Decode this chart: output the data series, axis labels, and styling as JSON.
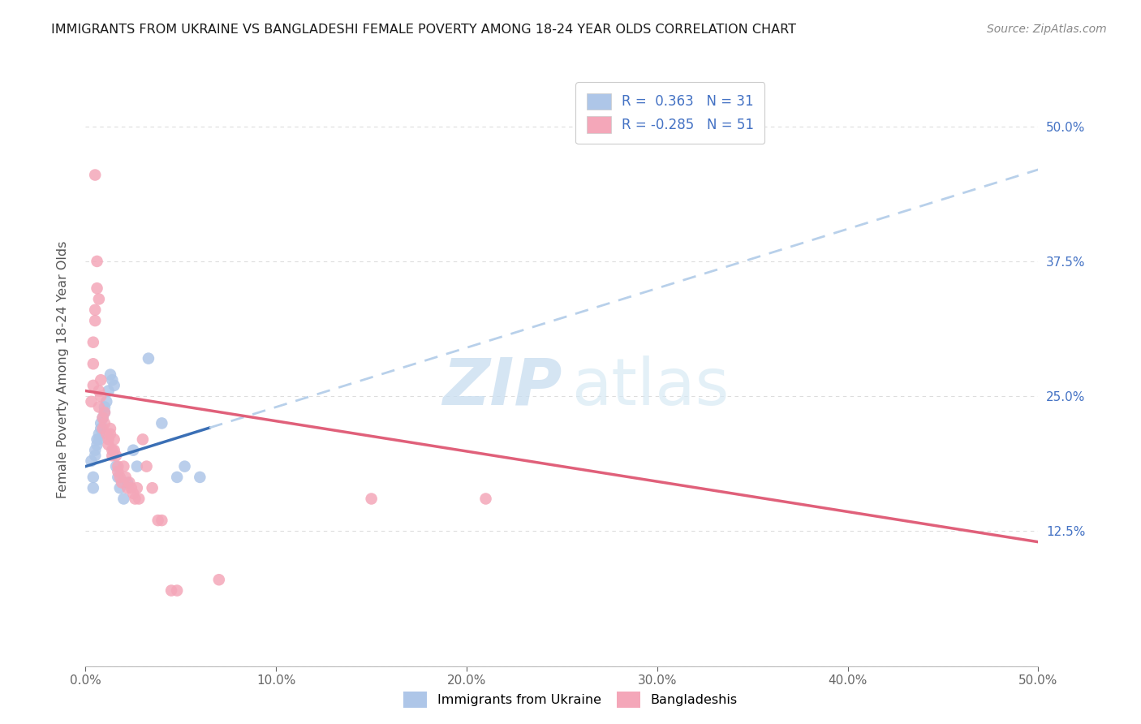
{
  "title": "IMMIGRANTS FROM UKRAINE VS BANGLADESHI FEMALE POVERTY AMONG 18-24 YEAR OLDS CORRELATION CHART",
  "source": "Source: ZipAtlas.com",
  "ylabel": "Female Poverty Among 18-24 Year Olds",
  "right_yticks": [
    "50.0%",
    "37.5%",
    "25.0%",
    "12.5%"
  ],
  "right_ytick_vals": [
    0.5,
    0.375,
    0.25,
    0.125
  ],
  "xlim": [
    0.0,
    0.5
  ],
  "ylim": [
    0.0,
    0.55
  ],
  "r_ukraine": 0.363,
  "n_ukraine": 31,
  "r_bangladeshi": -0.285,
  "n_bangladeshi": 51,
  "ukraine_color": "#aec6e8",
  "bangladeshi_color": "#f4a7b9",
  "ukraine_line_color": "#3a6fb5",
  "bangladeshi_line_color": "#e0607a",
  "ukraine_dashed_color": "#b8d0ea",
  "background_color": "#ffffff",
  "grid_color": "#dddddd",
  "ukraine_points": [
    [
      0.003,
      0.19
    ],
    [
      0.004,
      0.175
    ],
    [
      0.004,
      0.165
    ],
    [
      0.005,
      0.2
    ],
    [
      0.005,
      0.195
    ],
    [
      0.006,
      0.205
    ],
    [
      0.006,
      0.21
    ],
    [
      0.007,
      0.215
    ],
    [
      0.007,
      0.21
    ],
    [
      0.008,
      0.22
    ],
    [
      0.008,
      0.225
    ],
    [
      0.009,
      0.23
    ],
    [
      0.01,
      0.24
    ],
    [
      0.01,
      0.235
    ],
    [
      0.011,
      0.245
    ],
    [
      0.012,
      0.255
    ],
    [
      0.013,
      0.27
    ],
    [
      0.014,
      0.265
    ],
    [
      0.015,
      0.26
    ],
    [
      0.016,
      0.185
    ],
    [
      0.017,
      0.175
    ],
    [
      0.018,
      0.165
    ],
    [
      0.02,
      0.155
    ],
    [
      0.022,
      0.17
    ],
    [
      0.025,
      0.2
    ],
    [
      0.027,
      0.185
    ],
    [
      0.033,
      0.285
    ],
    [
      0.04,
      0.225
    ],
    [
      0.048,
      0.175
    ],
    [
      0.052,
      0.185
    ],
    [
      0.06,
      0.175
    ]
  ],
  "bangladeshi_points": [
    [
      0.003,
      0.245
    ],
    [
      0.004,
      0.26
    ],
    [
      0.004,
      0.28
    ],
    [
      0.004,
      0.3
    ],
    [
      0.005,
      0.33
    ],
    [
      0.005,
      0.32
    ],
    [
      0.005,
      0.455
    ],
    [
      0.006,
      0.375
    ],
    [
      0.006,
      0.35
    ],
    [
      0.007,
      0.34
    ],
    [
      0.007,
      0.255
    ],
    [
      0.007,
      0.24
    ],
    [
      0.008,
      0.265
    ],
    [
      0.008,
      0.25
    ],
    [
      0.009,
      0.23
    ],
    [
      0.009,
      0.22
    ],
    [
      0.01,
      0.235
    ],
    [
      0.01,
      0.225
    ],
    [
      0.011,
      0.215
    ],
    [
      0.012,
      0.21
    ],
    [
      0.012,
      0.205
    ],
    [
      0.013,
      0.22
    ],
    [
      0.013,
      0.215
    ],
    [
      0.014,
      0.2
    ],
    [
      0.014,
      0.195
    ],
    [
      0.015,
      0.21
    ],
    [
      0.015,
      0.2
    ],
    [
      0.016,
      0.195
    ],
    [
      0.017,
      0.185
    ],
    [
      0.017,
      0.18
    ],
    [
      0.018,
      0.175
    ],
    [
      0.019,
      0.17
    ],
    [
      0.02,
      0.185
    ],
    [
      0.021,
      0.175
    ],
    [
      0.022,
      0.165
    ],
    [
      0.023,
      0.17
    ],
    [
      0.024,
      0.165
    ],
    [
      0.025,
      0.16
    ],
    [
      0.026,
      0.155
    ],
    [
      0.027,
      0.165
    ],
    [
      0.028,
      0.155
    ],
    [
      0.03,
      0.21
    ],
    [
      0.032,
      0.185
    ],
    [
      0.035,
      0.165
    ],
    [
      0.038,
      0.135
    ],
    [
      0.04,
      0.135
    ],
    [
      0.045,
      0.07
    ],
    [
      0.048,
      0.07
    ],
    [
      0.07,
      0.08
    ],
    [
      0.15,
      0.155
    ],
    [
      0.21,
      0.155
    ]
  ],
  "watermark_zip": "ZIP",
  "watermark_atlas": "atlas"
}
